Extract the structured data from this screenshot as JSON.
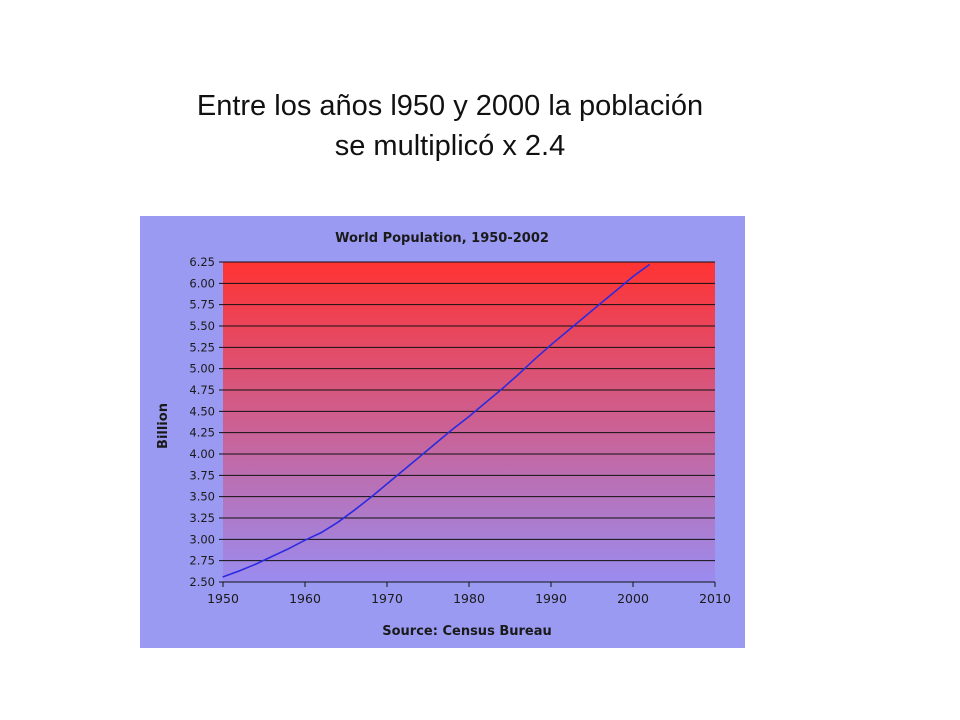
{
  "slide": {
    "title_line1": "Entre los años l950 y 2000 la población",
    "title_line2": "se multiplicó x 2.4"
  },
  "colors": {
    "panel_bg": "#9a9af2",
    "plot_top": "#ff3333",
    "plot_bottom": "#9a8cf0",
    "line": "#2b2be0",
    "grid": "#111111"
  },
  "chart_data": {
    "type": "line",
    "title": "World Population, 1950-2002",
    "xlabel": "Source: Census Bureau",
    "ylabel": "Billion",
    "xlim": [
      1950,
      2010
    ],
    "ylim": [
      2.5,
      6.25
    ],
    "x_ticks": [
      "1950",
      "1960",
      "1970",
      "1980",
      "1990",
      "2000",
      "2010"
    ],
    "y_ticks": [
      "2.50",
      "2.75",
      "3.00",
      "3.25",
      "3.50",
      "3.75",
      "4.00",
      "4.25",
      "4.50",
      "4.75",
      "5.00",
      "5.25",
      "5.50",
      "5.75",
      "6.00",
      "6.25"
    ],
    "grid": true,
    "series": [
      {
        "x": [
          1950,
          1952,
          1954,
          1956,
          1958,
          1960,
          1962,
          1964,
          1966,
          1968,
          1970,
          1972,
          1974,
          1976,
          1978,
          1980,
          1982,
          1984,
          1986,
          1988,
          1990,
          1992,
          1994,
          1996,
          1998,
          2000,
          2002
        ],
        "y": [
          2.56,
          2.63,
          2.71,
          2.8,
          2.89,
          2.99,
          3.08,
          3.2,
          3.34,
          3.49,
          3.65,
          3.81,
          3.97,
          4.13,
          4.29,
          4.44,
          4.6,
          4.76,
          4.93,
          5.11,
          5.28,
          5.44,
          5.6,
          5.76,
          5.92,
          6.08,
          6.22
        ]
      }
    ]
  }
}
